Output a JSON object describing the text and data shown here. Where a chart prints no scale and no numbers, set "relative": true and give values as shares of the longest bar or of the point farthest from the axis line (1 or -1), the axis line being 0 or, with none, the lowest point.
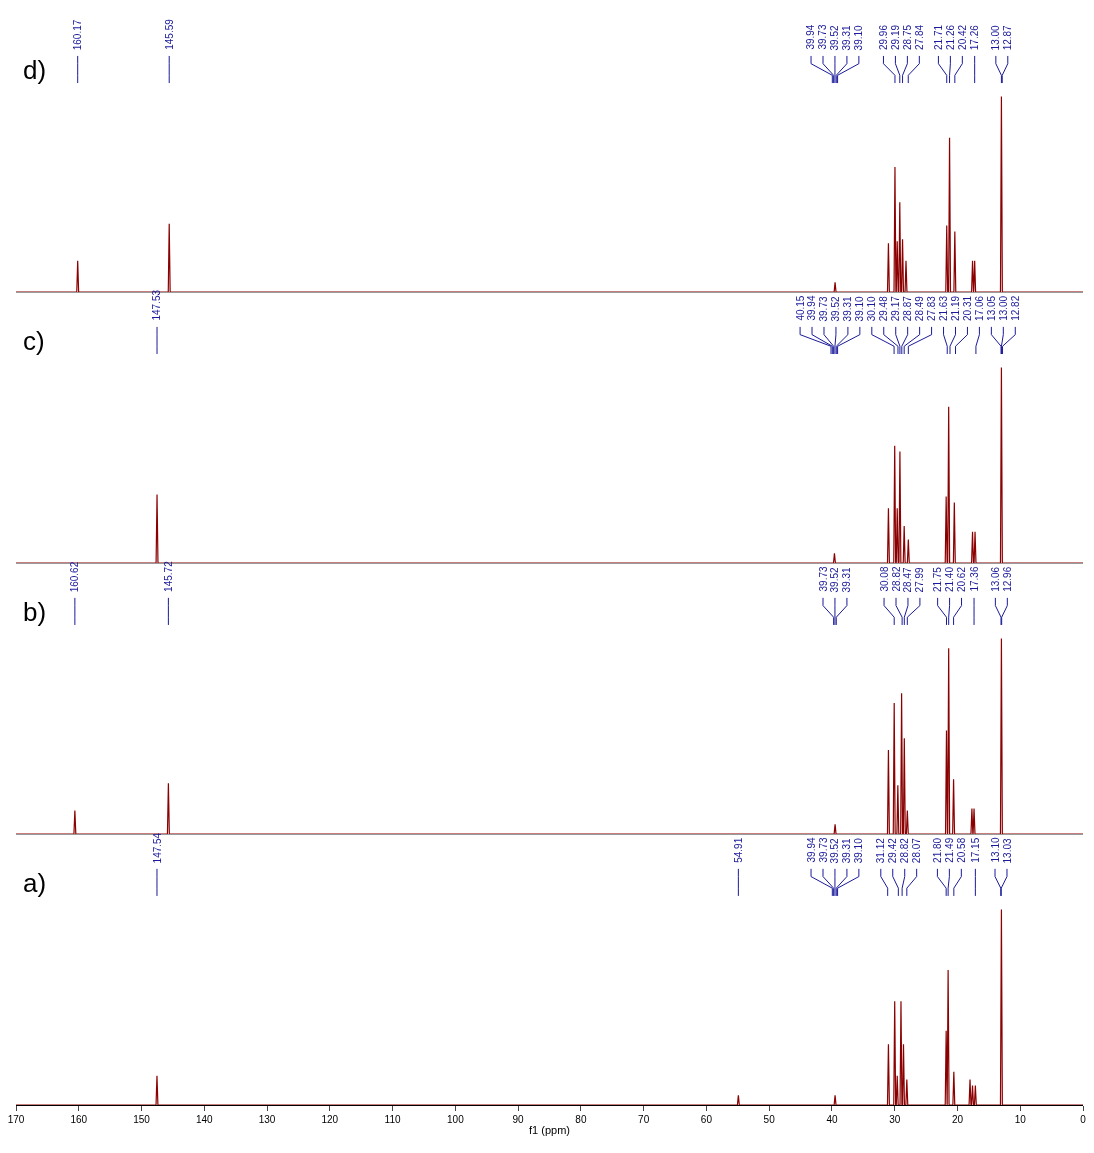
{
  "chart_data": [
    {
      "type": "line",
      "title": "d)",
      "relative": true,
      "xlim": [
        170,
        0
      ],
      "tick_labels": false,
      "color": "#8b0000",
      "x": [
        170,
        160.32,
        160.17,
        160.02,
        145.74,
        145.59,
        145.44,
        39.65,
        39.5,
        39.35,
        31.15,
        31.0,
        30.85,
        30.11,
        29.96,
        29.81,
        29.75,
        29.6,
        29.45,
        29.34,
        29.19,
        29.04,
        28.9,
        28.75,
        28.6,
        28.35,
        28.2,
        28.05,
        21.86,
        21.71,
        21.56,
        21.41,
        21.26,
        21.11,
        20.57,
        20.42,
        20.27,
        17.75,
        17.6,
        17.45,
        17.41,
        17.26,
        17.11,
        13.15,
        13.0,
        12.85,
        0
      ],
      "values": [
        0,
        0,
        0.16,
        0,
        0,
        0.35,
        0,
        0,
        0.05,
        0,
        0,
        0.25,
        0,
        0,
        0.64,
        0,
        0,
        0.26,
        0,
        0,
        0.46,
        0,
        0,
        0.27,
        0,
        0,
        0.16,
        0,
        0,
        0.34,
        0,
        0,
        0.79,
        0,
        0,
        0.31,
        0,
        0,
        0.16,
        0,
        0,
        0.16,
        0,
        0,
        1,
        0,
        0
      ],
      "annotations": [
        {
          "text": "160.17",
          "x": 160.17
        },
        {
          "text": "145.59",
          "x": 145.59
        },
        {
          "text": "39.94",
          "x": 39.94
        },
        {
          "text": "39.73",
          "x": 39.73
        },
        {
          "text": "39.52",
          "x": 39.52
        },
        {
          "text": "39.31",
          "x": 39.31
        },
        {
          "text": "39.10",
          "x": 39.1
        },
        {
          "text": "29.96",
          "x": 29.96
        },
        {
          "text": "29.19",
          "x": 29.19
        },
        {
          "text": "28.75",
          "x": 28.75
        },
        {
          "text": "27.84",
          "x": 27.84
        },
        {
          "text": "21.71",
          "x": 21.71
        },
        {
          "text": "21.26",
          "x": 21.26
        },
        {
          "text": "20.42",
          "x": 20.42
        },
        {
          "text": "17.26",
          "x": 17.26
        },
        {
          "text": "13.00",
          "x": 13.0
        },
        {
          "text": "12.87",
          "x": 12.87
        }
      ]
    },
    {
      "type": "line",
      "title": "c)",
      "relative": true,
      "xlim": [
        170,
        0
      ],
      "tick_labels": false,
      "color": "#8b0000",
      "x": [
        170,
        147.68,
        147.53,
        147.38,
        39.75,
        39.6,
        39.45,
        31.15,
        31.0,
        30.85,
        30.15,
        30.0,
        29.85,
        29.75,
        29.6,
        29.45,
        29.32,
        29.17,
        29.02,
        28.64,
        28.49,
        28.34,
        27.98,
        27.83,
        27.68,
        21.95,
        21.8,
        21.65,
        21.55,
        21.4,
        21.25,
        20.65,
        20.5,
        20.35,
        17.75,
        17.6,
        17.45,
        17.35,
        17.2,
        17.05,
        13.15,
        13.0,
        12.85,
        0
      ],
      "values": [
        0,
        0,
        0.35,
        0,
        0,
        0.05,
        0,
        0,
        0.28,
        0,
        0,
        0.6,
        0,
        0,
        0.28,
        0,
        0,
        0.57,
        0,
        0,
        0.19,
        0,
        0,
        0.12,
        0,
        0,
        0.34,
        0,
        0,
        0.8,
        0,
        0,
        0.31,
        0,
        0,
        0.16,
        0,
        0,
        0.16,
        0,
        0,
        1,
        0,
        0
      ],
      "annotations": [
        {
          "text": "147.53",
          "x": 147.53
        },
        {
          "text": "40.15",
          "x": 40.15
        },
        {
          "text": "39.94",
          "x": 39.94
        },
        {
          "text": "39.73",
          "x": 39.73
        },
        {
          "text": "39.52",
          "x": 39.52
        },
        {
          "text": "39.31",
          "x": 39.31
        },
        {
          "text": "39.10",
          "x": 39.1
        },
        {
          "text": "30.10",
          "x": 30.1
        },
        {
          "text": "29.48",
          "x": 29.48
        },
        {
          "text": "29.17",
          "x": 29.17
        },
        {
          "text": "28.87",
          "x": 28.87
        },
        {
          "text": "28.49",
          "x": 28.49
        },
        {
          "text": "27.83",
          "x": 27.83
        },
        {
          "text": "21.63",
          "x": 21.63
        },
        {
          "text": "21.19",
          "x": 21.19
        },
        {
          "text": "20.31",
          "x": 20.31
        },
        {
          "text": "17.06",
          "x": 17.06
        },
        {
          "text": "13.05",
          "x": 13.05
        },
        {
          "text": "13.00",
          "x": 13.0
        },
        {
          "text": "12.82",
          "x": 12.82
        }
      ]
    },
    {
      "type": "line",
      "title": "b)",
      "relative": true,
      "xlim": [
        170,
        0
      ],
      "tick_labels": false,
      "color": "#8b0000",
      "x": [
        170,
        160.77,
        160.62,
        160.47,
        145.87,
        145.72,
        145.57,
        39.65,
        39.5,
        39.35,
        31.15,
        31.0,
        30.85,
        30.23,
        30.08,
        29.93,
        29.65,
        29.5,
        29.35,
        29.05,
        28.9,
        28.75,
        28.62,
        28.47,
        28.32,
        28.14,
        27.99,
        27.84,
        21.9,
        21.75,
        21.6,
        21.55,
        21.4,
        21.25,
        20.77,
        20.62,
        20.47,
        17.85,
        17.7,
        17.55,
        17.51,
        17.36,
        17.21,
        13.15,
        13.0,
        12.85,
        0
      ],
      "values": [
        0,
        0,
        0.12,
        0,
        0,
        0.26,
        0,
        0,
        0.05,
        0,
        0,
        0.43,
        0,
        0,
        0.67,
        0,
        0,
        0.25,
        0,
        0,
        0.72,
        0,
        0,
        0.49,
        0,
        0,
        0.12,
        0,
        0,
        0.53,
        0,
        0,
        0.95,
        0,
        0,
        0.28,
        0,
        0,
        0.13,
        0,
        0,
        0.13,
        0,
        0,
        1,
        0,
        0
      ],
      "annotations": [
        {
          "text": "160.62",
          "x": 160.62
        },
        {
          "text": "145.72",
          "x": 145.72
        },
        {
          "text": "39.73",
          "x": 39.73
        },
        {
          "text": "39.52",
          "x": 39.52
        },
        {
          "text": "39.31",
          "x": 39.31
        },
        {
          "text": "30.08",
          "x": 30.08
        },
        {
          "text": "28.82",
          "x": 28.82
        },
        {
          "text": "28.47",
          "x": 28.47
        },
        {
          "text": "27.99",
          "x": 27.99
        },
        {
          "text": "21.75",
          "x": 21.75
        },
        {
          "text": "21.40",
          "x": 21.4
        },
        {
          "text": "20.62",
          "x": 20.62
        },
        {
          "text": "17.36",
          "x": 17.36
        },
        {
          "text": "13.06",
          "x": 13.06
        },
        {
          "text": "12.96",
          "x": 12.96
        }
      ]
    },
    {
      "type": "line",
      "title": "a)",
      "relative": true,
      "xlim": [
        170,
        0
      ],
      "xlabel": "f1 (ppm)",
      "tick_labels": "x",
      "color": "#8b0000",
      "xticks": [
        170,
        160,
        150,
        140,
        130,
        120,
        110,
        100,
        90,
        80,
        70,
        60,
        50,
        40,
        30,
        20,
        10,
        0
      ],
      "x": [
        170,
        147.69,
        147.54,
        147.39,
        55.06,
        54.91,
        54.76,
        39.65,
        39.5,
        39.35,
        31.15,
        31.0,
        30.85,
        30.15,
        30.0,
        29.85,
        29.75,
        29.6,
        29.45,
        29.15,
        29.0,
        28.85,
        28.75,
        28.6,
        28.45,
        28.22,
        28.07,
        27.92,
        21.95,
        21.8,
        21.65,
        21.64,
        21.49,
        21.34,
        20.73,
        20.58,
        20.43,
        18.15,
        18.0,
        17.85,
        17.75,
        17.6,
        17.45,
        17.3,
        17.15,
        17.0,
        13.15,
        13.0,
        12.85,
        0
      ],
      "values": [
        0,
        0,
        0.15,
        0,
        0,
        0.05,
        0,
        0,
        0.05,
        0,
        0,
        0.31,
        0,
        0,
        0.53,
        0,
        0,
        0.15,
        0,
        0,
        0.53,
        0,
        0,
        0.31,
        0,
        0,
        0.13,
        0,
        0,
        0.38,
        0,
        0,
        0.69,
        0,
        0,
        0.17,
        0,
        0,
        0.13,
        0,
        0,
        0.1,
        0,
        0,
        0.1,
        0,
        0,
        1,
        0,
        0
      ],
      "annotations": [
        {
          "text": "147.54",
          "x": 147.54
        },
        {
          "text": "54.91",
          "x": 54.91
        },
        {
          "text": "39.94",
          "x": 39.94
        },
        {
          "text": "39.73",
          "x": 39.73
        },
        {
          "text": "39.52",
          "x": 39.52
        },
        {
          "text": "39.31",
          "x": 39.31
        },
        {
          "text": "31.12",
          "x": 31.12
        },
        {
          "text": "39.10",
          "x": 39.1
        },
        {
          "text": "29.42",
          "x": 29.42
        },
        {
          "text": "28.82",
          "x": 28.82
        },
        {
          "text": "28.07",
          "x": 28.07
        },
        {
          "text": "21.80",
          "x": 21.8
        },
        {
          "text": "21.49",
          "x": 21.49
        },
        {
          "text": "20.58",
          "x": 20.58
        },
        {
          "text": "17.15",
          "x": 17.15
        },
        {
          "text": "13.10",
          "x": 13.1
        },
        {
          "text": "13.03",
          "x": 13.03
        }
      ]
    }
  ]
}
